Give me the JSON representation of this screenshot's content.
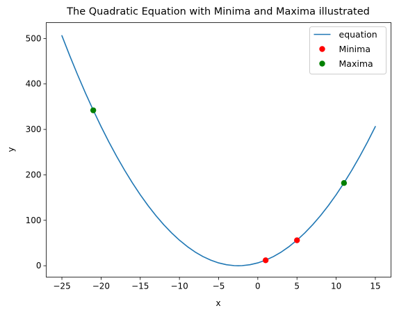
{
  "chart_data": {
    "type": "line",
    "title": "The Quadratic Equation with Minima and Maxima illustrated",
    "xlabel": "x",
    "ylabel": "y",
    "xlim": [
      -27,
      17
    ],
    "ylim": [
      -25,
      535
    ],
    "xticks": [
      -25,
      -20,
      -15,
      -10,
      -5,
      0,
      5,
      10,
      15
    ],
    "yticks": [
      0,
      100,
      200,
      300,
      400,
      500
    ],
    "grid": false,
    "legend_position": "top-right",
    "series": [
      {
        "name": "equation",
        "kind": "line",
        "color": "#1f77b4",
        "x": [
          -25,
          -24,
          -23,
          -22,
          -21,
          -20,
          -19,
          -18,
          -17,
          -16,
          -15,
          -14,
          -13,
          -12,
          -11,
          -10,
          -9,
          -8,
          -7,
          -6,
          -5,
          -4,
          -3,
          -2.5,
          -2,
          -1,
          0,
          1,
          2,
          3,
          4,
          5,
          6,
          7,
          8,
          9,
          10,
          11,
          12,
          13,
          14,
          15
        ],
        "y": [
          506.25,
          462.25,
          420.25,
          380.25,
          342.25,
          306.25,
          272.25,
          240.25,
          210.25,
          182.25,
          156.25,
          132.25,
          110.25,
          90.25,
          72.25,
          56.25,
          42.25,
          30.25,
          20.25,
          12.25,
          6.25,
          2.25,
          0.25,
          0,
          0.25,
          2.25,
          6.25,
          12.25,
          20.25,
          30.25,
          42.25,
          56.25,
          72.25,
          90.25,
          110.25,
          132.25,
          156.25,
          182.25,
          210.25,
          240.25,
          272.25,
          306.25
        ]
      },
      {
        "name": "Minima",
        "kind": "scatter",
        "color": "#ff0000",
        "points": [
          {
            "x": 1,
            "y": 12
          },
          {
            "x": 5,
            "y": 56
          }
        ]
      },
      {
        "name": "Maxima",
        "kind": "scatter",
        "color": "#008000",
        "points": [
          {
            "x": -21,
            "y": 342
          },
          {
            "x": 11,
            "y": 182
          }
        ]
      }
    ]
  }
}
